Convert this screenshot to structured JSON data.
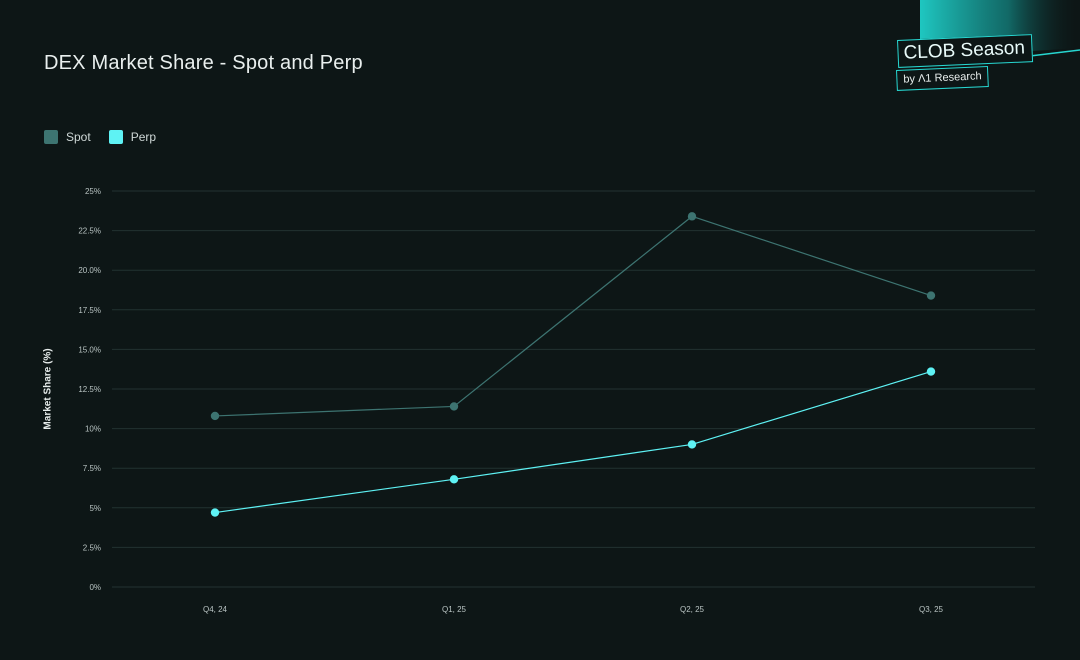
{
  "title": "DEX Market Share - Spot and Perp",
  "brand": {
    "title": "CLOB Season",
    "subtitle": "by Λ1 Research",
    "accent": "#27d6d0"
  },
  "legend": [
    {
      "label": "Spot",
      "color": "#3d7471"
    },
    {
      "label": "Perp",
      "color": "#5ef2f4"
    }
  ],
  "chart_data": {
    "type": "line",
    "title": "DEX Market Share - Spot and Perp",
    "xlabel": "",
    "ylabel": "Market Share (%)",
    "categories": [
      "Q4, 24",
      "Q1, 25",
      "Q2, 25",
      "Q3, 25"
    ],
    "ylim": [
      0,
      25
    ],
    "yticks": [
      0,
      2.5,
      5,
      7.5,
      10,
      12.5,
      15,
      17.5,
      20,
      22.5,
      25
    ],
    "ytick_labels": [
      "0%",
      "2.5%",
      "5%",
      "7.5%",
      "10%",
      "12.5%",
      "15.0%",
      "17.5%",
      "20.0%",
      "22.5%",
      "25%"
    ],
    "grid": true,
    "legend_position": "top-left",
    "series": [
      {
        "name": "Spot",
        "color": "#3d7471",
        "values": [
          10.8,
          11.4,
          23.4,
          18.4
        ]
      },
      {
        "name": "Perp",
        "color": "#5ef2f4",
        "values": [
          4.7,
          6.8,
          9.0,
          13.6
        ]
      }
    ]
  }
}
